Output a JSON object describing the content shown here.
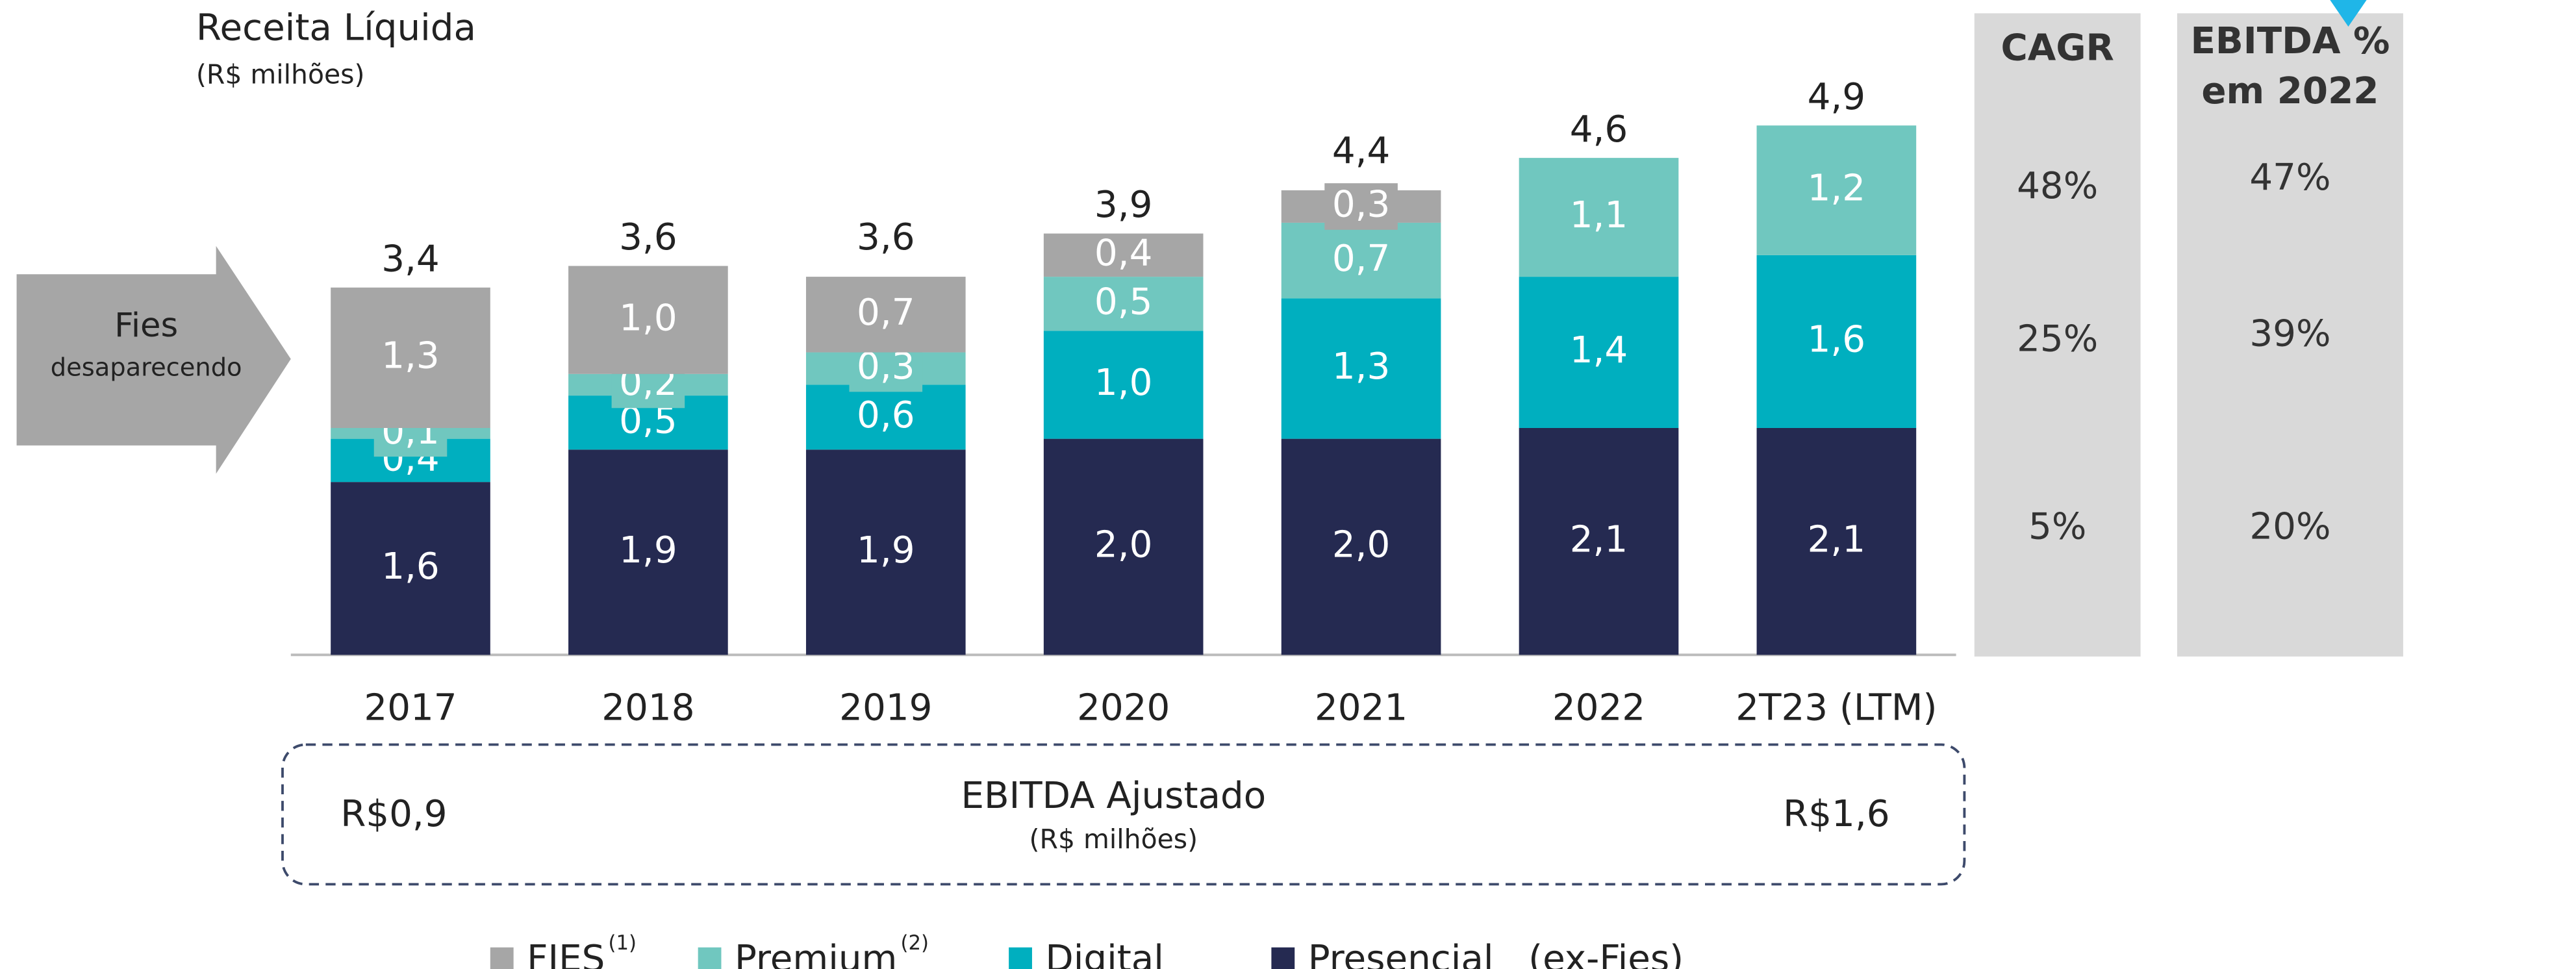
{
  "chart_data": {
    "type": "stacked_bar",
    "title": "Receita Líquida",
    "subtitle": "(R$ milhões)",
    "categories": [
      "2017",
      "2018",
      "2019",
      "2020",
      "2021",
      "2022",
      "2T23 (LTM)"
    ],
    "series": [
      {
        "name": "Presencial   (ex-Fies)",
        "color": "#252a51",
        "values": [
          1.6,
          1.9,
          1.9,
          2.0,
          2.0,
          2.1,
          2.1
        ],
        "value_labels": [
          "1,6",
          "1,9",
          "1,9",
          "2,0",
          "2,0",
          "2,1",
          "2,1"
        ]
      },
      {
        "name": "Digital",
        "color": "#00afbf",
        "values": [
          0.4,
          0.5,
          0.6,
          1.0,
          1.3,
          1.4,
          1.6
        ],
        "value_labels": [
          "0,4",
          "0,5",
          "0,6",
          "1,0",
          "1,3",
          "1,4",
          "1,6"
        ]
      },
      {
        "name": "Premium",
        "note": "(2)",
        "color": "#70c7bf",
        "values": [
          0.1,
          0.2,
          0.3,
          0.5,
          0.7,
          1.1,
          1.2
        ],
        "value_labels": [
          "0,1",
          "0,2",
          "0,3",
          "0,5",
          "0,7",
          "1,1",
          "1,2"
        ]
      },
      {
        "name": "FIES",
        "note": "(1)",
        "color": "#a6a6a6",
        "values": [
          1.3,
          1.0,
          0.7,
          0.4,
          0.3,
          null,
          null
        ],
        "value_labels": [
          "1,3",
          "1,0",
          "0,7",
          "0,4",
          "0,3",
          null,
          null
        ]
      }
    ],
    "totals": [
      3.4,
      3.6,
      3.6,
      3.9,
      4.4,
      4.6,
      4.9
    ],
    "total_labels": [
      "3,4",
      "3,6",
      "3,6",
      "3,9",
      "4,4",
      "4,6",
      "4,9"
    ],
    "ylim": [
      0,
      5.0
    ],
    "annotation": {
      "title": "Fies",
      "subtitle": "desaparecendo"
    },
    "ebitda": {
      "title": "EBITDA Ajustado",
      "subtitle": "(R$ milhões)",
      "start": "R$0,9",
      "end": "R$1,6"
    },
    "panels": [
      {
        "header": [
          "CAGR"
        ],
        "values": [
          "48%",
          "25%",
          "5%"
        ]
      },
      {
        "header": [
          "EBITDA %",
          "em 2022"
        ],
        "values": [
          "47%",
          "39%",
          "20%"
        ]
      }
    ]
  }
}
